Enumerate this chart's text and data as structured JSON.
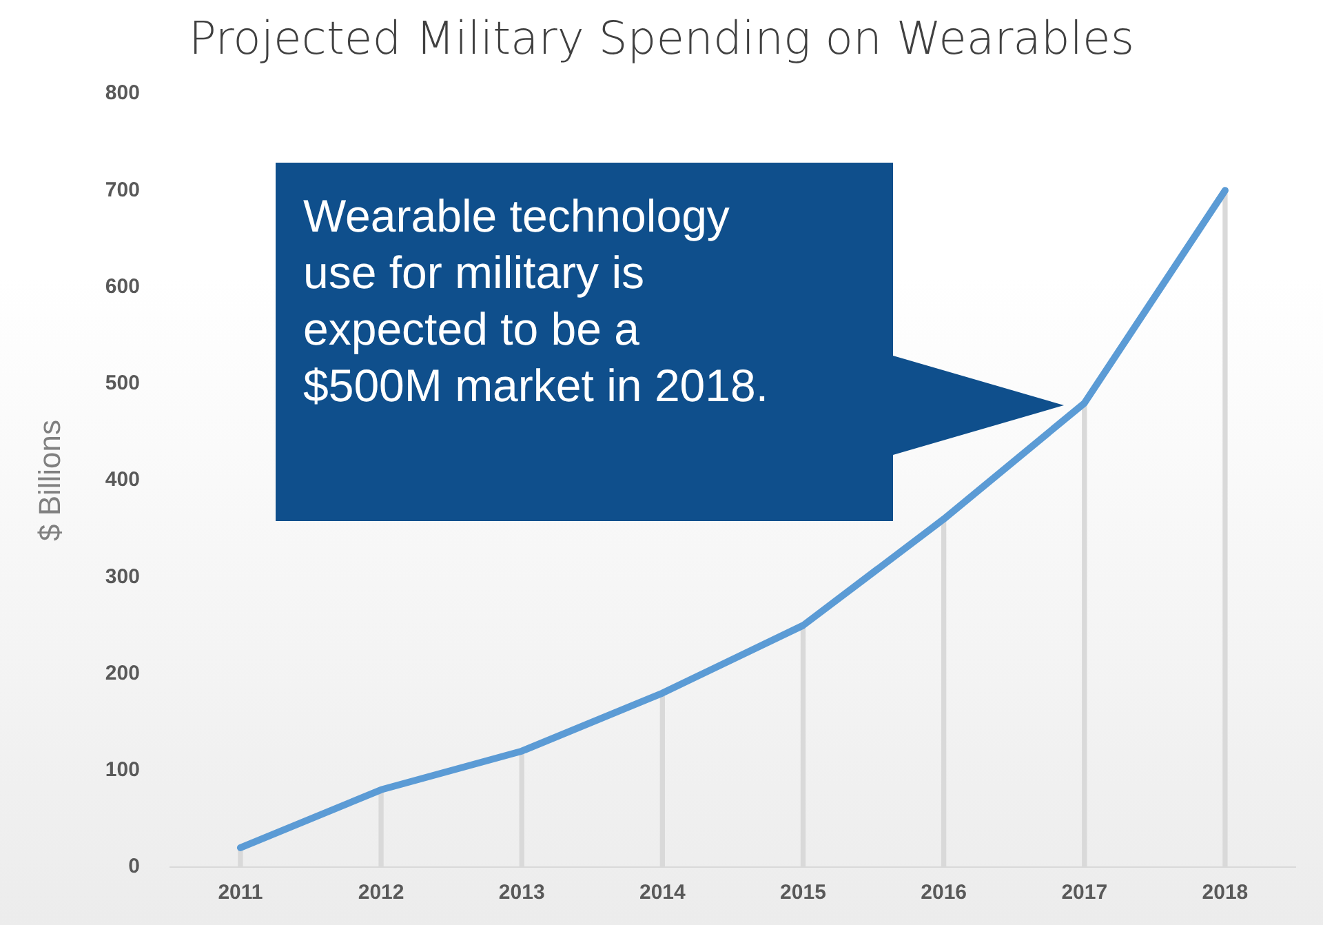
{
  "chart_data": {
    "type": "line",
    "title": "Projected Military Spending on Wearables",
    "ylabel": "$ Billions",
    "categories": [
      "2011",
      "2012",
      "2013",
      "2014",
      "2015",
      "2016",
      "2017",
      "2018"
    ],
    "series": [
      {
        "type": "bar",
        "color": "#d9d9d9",
        "values": [
          20,
          80,
          120,
          180,
          250,
          360,
          480,
          700
        ]
      },
      {
        "color": "#5b9bd5",
        "values": [
          20,
          80,
          120,
          180,
          250,
          360,
          480,
          700
        ]
      }
    ],
    "ylim": [
      0,
      800
    ],
    "yticks": [
      0,
      100,
      200,
      300,
      400,
      500,
      600,
      700,
      800
    ],
    "grid": false,
    "legend": false,
    "marker": "none",
    "line_style": "solid",
    "annotations": [
      "Wearable technology use for military is expected to be a $500M market in 2018."
    ]
  }
}
